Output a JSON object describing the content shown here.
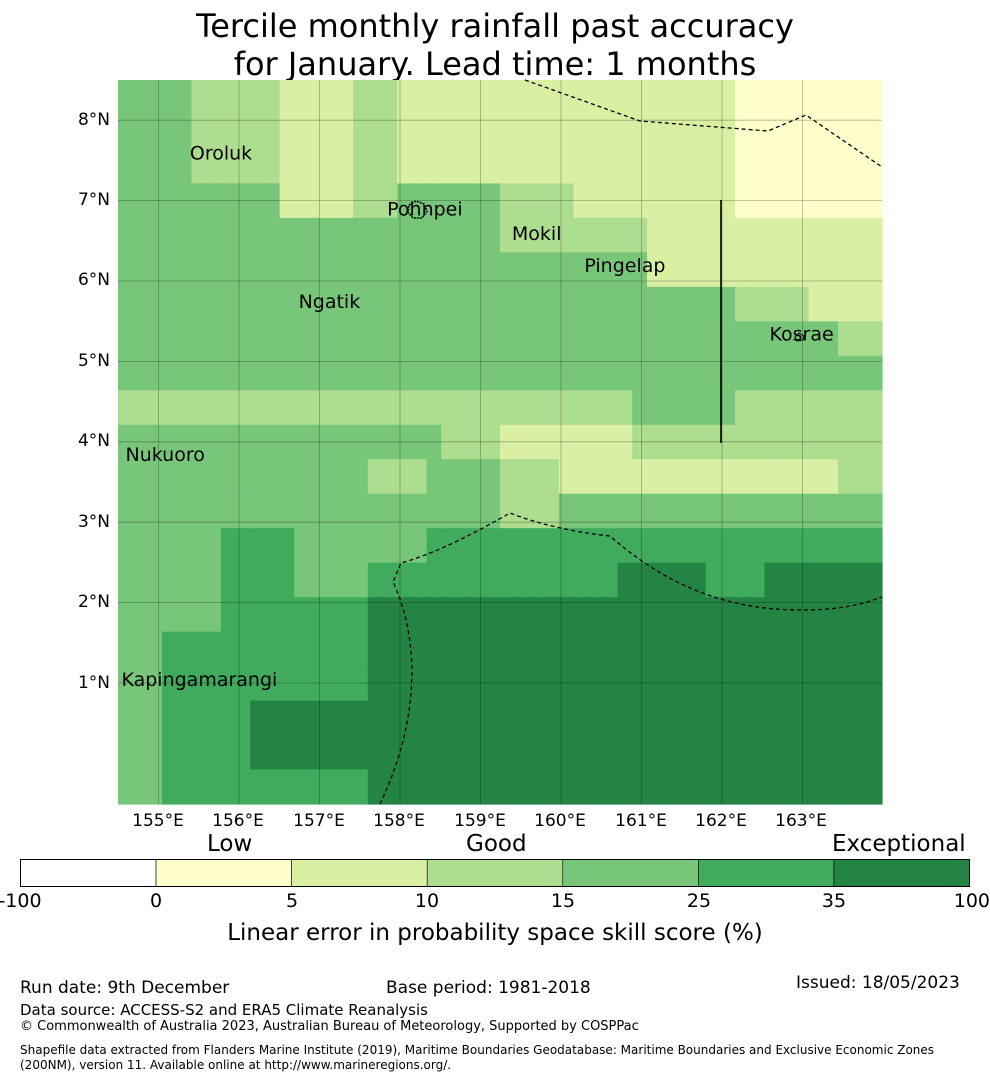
{
  "title": {
    "line1": "Tercile monthly rainfall past accuracy",
    "line2": "for January. Lead time: 1 months"
  },
  "map": {
    "lat_labels": [
      "8°N",
      "7°N",
      "6°N",
      "5°N",
      "4°N",
      "3°N",
      "2°N",
      "1°N"
    ],
    "lon_labels": [
      "155°E",
      "156°E",
      "157°E",
      "158°E",
      "159°E",
      "160°E",
      "161°E",
      "162°E",
      "163°E"
    ],
    "places": [
      {
        "name": "Oroluk",
        "lon": 155.8,
        "lat": 7.6
      },
      {
        "name": "Pohnpei",
        "lon": 158.25,
        "lat": 6.9
      },
      {
        "name": "Mokil",
        "lon": 159.8,
        "lat": 6.6
      },
      {
        "name": "Pingelap",
        "lon": 160.7,
        "lat": 6.2
      },
      {
        "name": "Ngatik",
        "lon": 157.15,
        "lat": 5.75
      },
      {
        "name": "Kosrae",
        "lon": 163.0,
        "lat": 5.35
      },
      {
        "name": "Nukuoro",
        "lon": 155.0,
        "lat": 3.85
      },
      {
        "name": "Kapingamarangi",
        "lon": 154.95,
        "lat": 1.05
      }
    ],
    "grid": [
      [
        15,
        15,
        15,
        15,
        15,
        10,
        10,
        10,
        10,
        10,
        10,
        5,
        5,
        5,
        5,
        5,
        10,
        10,
        10,
        5,
        5,
        5,
        5,
        5,
        5,
        5,
        5,
        5,
        5,
        5,
        5,
        5,
        5,
        5,
        5,
        5,
        5,
        5,
        5,
        5,
        5,
        5,
        0,
        0,
        0,
        0,
        0,
        0,
        0,
        0,
        0,
        0
      ],
      [
        15,
        15,
        15,
        15,
        15,
        10,
        10,
        10,
        10,
        10,
        10,
        5,
        5,
        5,
        5,
        5,
        10,
        10,
        10,
        5,
        5,
        5,
        5,
        5,
        5,
        5,
        5,
        5,
        5,
        5,
        5,
        5,
        5,
        5,
        5,
        5,
        5,
        5,
        5,
        5,
        5,
        5,
        0,
        0,
        0,
        0,
        0,
        0,
        0,
        0,
        0,
        0
      ],
      [
        15,
        15,
        15,
        15,
        15,
        10,
        10,
        10,
        10,
        10,
        10,
        5,
        5,
        5,
        5,
        5,
        10,
        10,
        10,
        5,
        5,
        5,
        5,
        5,
        5,
        5,
        5,
        5,
        5,
        5,
        5,
        5,
        5,
        5,
        5,
        5,
        5,
        5,
        5,
        5,
        5,
        5,
        0,
        0,
        0,
        0,
        0,
        0,
        0,
        0,
        0,
        0
      ],
      [
        15,
        15,
        15,
        15,
        15,
        15,
        15,
        15,
        15,
        15,
        15,
        5,
        5,
        5,
        5,
        5,
        10,
        10,
        10,
        15,
        15,
        15,
        15,
        15,
        15,
        15,
        10,
        10,
        10,
        10,
        10,
        5,
        5,
        5,
        5,
        5,
        5,
        5,
        5,
        5,
        5,
        5,
        0,
        0,
        0,
        0,
        0,
        0,
        0,
        0,
        0,
        0
      ],
      [
        15,
        15,
        15,
        15,
        15,
        15,
        15,
        15,
        15,
        15,
        15,
        15,
        15,
        15,
        15,
        15,
        15,
        15,
        15,
        15,
        15,
        15,
        15,
        15,
        15,
        15,
        10,
        10,
        10,
        10,
        10,
        10,
        10,
        10,
        10,
        10,
        5,
        5,
        5,
        5,
        5,
        5,
        5,
        5,
        5,
        5,
        5,
        5,
        5,
        5,
        5,
        5
      ],
      [
        15,
        15,
        15,
        15,
        15,
        15,
        15,
        15,
        15,
        15,
        15,
        15,
        15,
        15,
        15,
        15,
        15,
        15,
        15,
        15,
        15,
        15,
        15,
        15,
        15,
        15,
        15,
        15,
        15,
        15,
        15,
        15,
        15,
        15,
        15,
        15,
        5,
        5,
        5,
        5,
        5,
        5,
        5,
        5,
        5,
        5,
        5,
        5,
        5,
        5,
        5,
        5
      ],
      [
        15,
        15,
        15,
        15,
        15,
        15,
        15,
        15,
        15,
        15,
        15,
        15,
        15,
        15,
        15,
        15,
        15,
        15,
        15,
        15,
        15,
        15,
        15,
        15,
        15,
        15,
        15,
        15,
        15,
        15,
        15,
        15,
        15,
        15,
        15,
        15,
        15,
        15,
        15,
        15,
        15,
        15,
        10,
        10,
        10,
        10,
        10,
        5,
        5,
        5,
        5,
        5
      ],
      [
        15,
        15,
        15,
        15,
        15,
        15,
        15,
        15,
        15,
        15,
        15,
        15,
        15,
        15,
        15,
        15,
        15,
        15,
        15,
        15,
        15,
        15,
        15,
        15,
        15,
        15,
        15,
        15,
        15,
        15,
        15,
        15,
        15,
        15,
        15,
        15,
        15,
        15,
        15,
        15,
        15,
        15,
        15,
        15,
        15,
        15,
        15,
        15,
        15,
        10,
        10,
        10
      ],
      [
        15,
        15,
        15,
        15,
        15,
        15,
        15,
        15,
        15,
        15,
        15,
        15,
        15,
        15,
        15,
        15,
        15,
        15,
        15,
        15,
        15,
        15,
        15,
        15,
        15,
        15,
        15,
        15,
        15,
        15,
        15,
        15,
        15,
        15,
        15,
        15,
        15,
        15,
        15,
        15,
        15,
        15,
        15,
        15,
        15,
        15,
        15,
        15,
        15,
        15,
        15,
        15
      ],
      [
        10,
        10,
        10,
        10,
        10,
        10,
        10,
        10,
        10,
        10,
        10,
        10,
        10,
        10,
        10,
        10,
        10,
        10,
        10,
        10,
        10,
        10,
        10,
        10,
        10,
        10,
        10,
        10,
        10,
        10,
        10,
        10,
        10,
        10,
        10,
        15,
        15,
        15,
        15,
        15,
        15,
        15,
        10,
        10,
        10,
        10,
        10,
        10,
        10,
        10,
        10,
        10
      ],
      [
        15,
        15,
        15,
        15,
        15,
        15,
        15,
        15,
        15,
        15,
        15,
        15,
        15,
        15,
        15,
        15,
        15,
        15,
        15,
        15,
        15,
        15,
        10,
        10,
        10,
        10,
        5,
        5,
        5,
        5,
        5,
        5,
        5,
        5,
        5,
        10,
        10,
        10,
        10,
        10,
        10,
        10,
        10,
        10,
        10,
        10,
        10,
        10,
        10,
        10,
        10,
        10
      ],
      [
        15,
        15,
        15,
        15,
        15,
        15,
        15,
        15,
        15,
        15,
        15,
        15,
        15,
        15,
        15,
        15,
        15,
        10,
        10,
        10,
        10,
        15,
        15,
        15,
        15,
        15,
        10,
        10,
        10,
        10,
        5,
        5,
        5,
        5,
        5,
        5,
        5,
        5,
        5,
        5,
        5,
        5,
        5,
        5,
        5,
        5,
        5,
        5,
        5,
        10,
        10,
        10
      ],
      [
        15,
        15,
        15,
        15,
        15,
        15,
        15,
        15,
        15,
        15,
        15,
        15,
        15,
        15,
        15,
        15,
        15,
        15,
        15,
        15,
        15,
        15,
        15,
        15,
        15,
        15,
        10,
        10,
        10,
        10,
        15,
        15,
        15,
        15,
        15,
        15,
        15,
        15,
        15,
        15,
        15,
        15,
        15,
        15,
        15,
        15,
        15,
        15,
        15,
        15,
        15,
        15
      ],
      [
        15,
        15,
        15,
        15,
        15,
        15,
        15,
        25,
        25,
        25,
        25,
        25,
        15,
        15,
        15,
        15,
        15,
        15,
        15,
        15,
        15,
        25,
        25,
        25,
        25,
        25,
        25,
        25,
        25,
        25,
        25,
        25,
        25,
        25,
        25,
        25,
        25,
        25,
        25,
        25,
        25,
        25,
        25,
        25,
        25,
        25,
        25,
        25,
        25,
        25,
        25,
        25
      ],
      [
        15,
        15,
        15,
        15,
        15,
        15,
        15,
        25,
        25,
        25,
        25,
        25,
        15,
        15,
        15,
        15,
        15,
        25,
        25,
        25,
        25,
        25,
        25,
        25,
        25,
        25,
        25,
        25,
        25,
        25,
        25,
        25,
        25,
        25,
        35,
        35,
        35,
        35,
        35,
        35,
        25,
        25,
        25,
        25,
        35,
        35,
        35,
        35,
        35,
        35,
        35,
        35
      ],
      [
        15,
        15,
        15,
        15,
        15,
        15,
        15,
        25,
        25,
        25,
        25,
        25,
        25,
        25,
        25,
        25,
        25,
        35,
        35,
        35,
        35,
        35,
        35,
        35,
        35,
        35,
        35,
        35,
        35,
        35,
        35,
        35,
        35,
        35,
        35,
        35,
        35,
        35,
        35,
        35,
        35,
        35,
        35,
        35,
        35,
        35,
        35,
        35,
        35,
        35,
        35,
        35
      ],
      [
        15,
        15,
        15,
        25,
        25,
        25,
        25,
        25,
        25,
        25,
        25,
        25,
        25,
        25,
        25,
        25,
        25,
        35,
        35,
        35,
        35,
        35,
        35,
        35,
        35,
        35,
        35,
        35,
        35,
        35,
        35,
        35,
        35,
        35,
        35,
        35,
        35,
        35,
        35,
        35,
        35,
        35,
        35,
        35,
        35,
        35,
        35,
        35,
        35,
        35,
        35,
        35
      ],
      [
        15,
        15,
        15,
        25,
        25,
        25,
        25,
        25,
        25,
        25,
        25,
        25,
        25,
        25,
        25,
        25,
        25,
        35,
        35,
        35,
        35,
        35,
        35,
        35,
        35,
        35,
        35,
        35,
        35,
        35,
        35,
        35,
        35,
        35,
        35,
        35,
        35,
        35,
        35,
        35,
        35,
        35,
        35,
        35,
        35,
        35,
        35,
        35,
        35,
        35,
        35,
        35
      ],
      [
        15,
        15,
        15,
        25,
        25,
        25,
        25,
        25,
        25,
        35,
        35,
        35,
        35,
        35,
        35,
        35,
        35,
        35,
        35,
        35,
        35,
        35,
        35,
        35,
        35,
        35,
        35,
        35,
        35,
        35,
        35,
        35,
        35,
        35,
        35,
        35,
        35,
        35,
        35,
        35,
        35,
        35,
        35,
        35,
        35,
        35,
        35,
        35,
        35,
        35,
        35,
        35
      ],
      [
        15,
        15,
        15,
        25,
        25,
        25,
        25,
        25,
        25,
        35,
        35,
        35,
        35,
        35,
        35,
        35,
        35,
        35,
        35,
        35,
        35,
        35,
        35,
        35,
        35,
        35,
        35,
        35,
        35,
        35,
        35,
        35,
        35,
        35,
        35,
        35,
        35,
        35,
        35,
        35,
        35,
        35,
        35,
        35,
        35,
        35,
        35,
        35,
        35,
        35,
        35,
        35
      ],
      [
        15,
        15,
        15,
        25,
        25,
        25,
        25,
        25,
        25,
        25,
        25,
        25,
        25,
        25,
        25,
        25,
        25,
        35,
        35,
        35,
        35,
        35,
        35,
        35,
        35,
        35,
        35,
        35,
        35,
        35,
        35,
        35,
        35,
        35,
        35,
        35,
        35,
        35,
        35,
        35,
        35,
        35,
        35,
        35,
        35,
        35,
        35,
        35,
        35,
        35,
        35,
        35
      ]
    ],
    "color_classes": [
      {
        "min": 0,
        "color": "#ffffcc"
      },
      {
        "min": 5,
        "color": "#d9f0a3"
      },
      {
        "min": 10,
        "color": "#addd8e"
      },
      {
        "min": 15,
        "color": "#78c679"
      },
      {
        "min": 25,
        "color": "#41ab5d"
      },
      {
        "min": 35,
        "color": "#238443"
      }
    ]
  },
  "colorbar": {
    "category_labels": [
      "Low",
      "Good",
      "Exceptional"
    ],
    "ticks": [
      "-100",
      "0",
      "5",
      "10",
      "15",
      "25",
      "35",
      "100"
    ],
    "colors": [
      "#ffffff",
      "#ffffcc",
      "#d9f0a3",
      "#addd8e",
      "#78c679",
      "#41ab5d",
      "#238443"
    ],
    "title": "Linear error in probability space skill score (%)"
  },
  "footer": {
    "run_date": "Run date: 9th December",
    "base_period": "Base period: 1981-2018",
    "issued": "Issued: 18/05/2023",
    "data_source": "Data source: ACCESS-S2 and ERA5 Climate Reanalysis",
    "copyright": "© Commonwealth of Australia 2023, Australian Bureau of Meteorology, Supported by COSPPac",
    "shapefile_line1": "Shapefile data extracted from Flanders Marine Institute (2019), Maritime Boundaries Geodatabase: Maritime Boundaries and Exclusive Economic Zones",
    "shapefile_line2": "(200NM), version 11. Available online at http://www.marineregions.org/."
  }
}
